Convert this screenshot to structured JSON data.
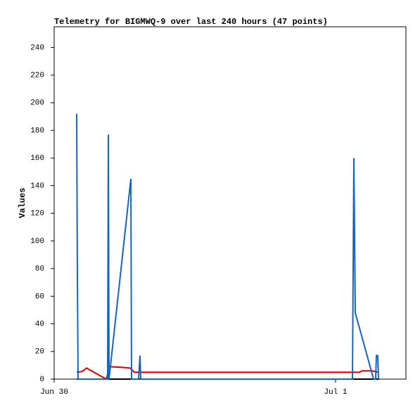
{
  "chart_data": {
    "type": "line",
    "title": "Telemetry for BIGMWQ-9 over last 240 hours (47 points)",
    "y_label": "Values",
    "xlim": [
      0,
      30
    ],
    "xticks": [
      {
        "value": 0,
        "label": "Jun 30"
      },
      {
        "value": 24,
        "label": "Jul 1"
      }
    ],
    "ylim": [
      0,
      255
    ],
    "yticks": [
      0,
      20,
      40,
      60,
      80,
      100,
      120,
      140,
      160,
      180,
      200,
      220,
      240
    ],
    "grid": false,
    "series": [
      {
        "color": "#000000",
        "x": [
          1.92,
          27.72
        ],
        "values": [
          0,
          0
        ]
      },
      {
        "color": "#dd0000",
        "x": [
          1.92,
          2.4,
          2.76,
          4.44,
          4.74,
          5.82,
          6.48,
          6.84,
          26.04,
          26.28,
          27.12,
          27.6
        ],
        "values": [
          5,
          5.5,
          8,
          0,
          9,
          8.5,
          8,
          5,
          5,
          6,
          6,
          5
        ]
      },
      {
        "color": "#1565c0",
        "x": [
          1.92,
          1.98,
          2.04,
          4.56,
          4.62,
          4.68,
          6.54,
          6.6,
          7.2,
          7.32,
          7.38,
          25.44,
          25.5,
          25.56,
          25.68,
          27.24,
          27.42,
          27.48,
          27.6,
          27.66
        ],
        "values": [
          192,
          73,
          0,
          0,
          177,
          0,
          145,
          0,
          0,
          17,
          0,
          0,
          80,
          160,
          48,
          0,
          0,
          17,
          17,
          0
        ]
      }
    ]
  }
}
